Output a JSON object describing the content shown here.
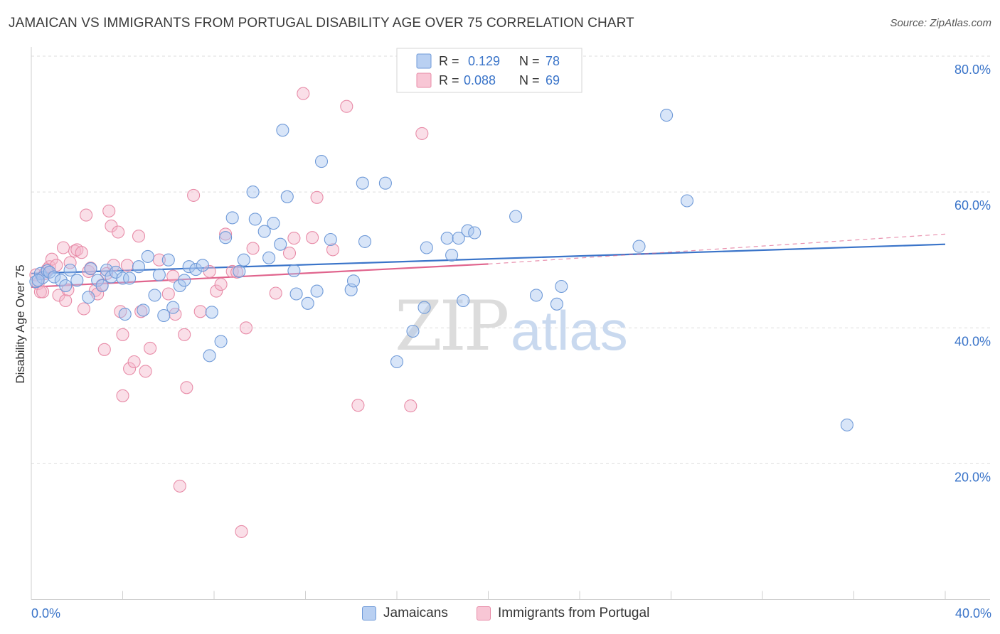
{
  "header": {
    "title": "JAMAICAN VS IMMIGRANTS FROM PORTUGAL DISABILITY AGE OVER 75 CORRELATION CHART",
    "source": "Source: ZipAtlas.com"
  },
  "watermark": {
    "zip": "ZIP",
    "atlas": "atlas"
  },
  "legend_top": [
    {
      "r_label": "R =",
      "r_value": "0.129",
      "n_label": "N =",
      "n_value": "78"
    },
    {
      "r_label": "R =",
      "r_value": "0.088",
      "n_label": "N =",
      "n_value": "69"
    }
  ],
  "chart_data": {
    "type": "scatter",
    "title": "JAMAICAN VS IMMIGRANTS FROM PORTUGAL DISABILITY AGE OVER 75 CORRELATION CHART",
    "xlabel": "",
    "ylabel": "Disability Age Over 75",
    "xlim": [
      0,
      40
    ],
    "ylim": [
      0,
      85
    ],
    "x_tick_labels": [
      "0.0%",
      "40.0%"
    ],
    "y_ticks": [
      20,
      40,
      60,
      80
    ],
    "y_tick_labels": [
      "20.0%",
      "40.0%",
      "60.0%",
      "80.0%"
    ],
    "grid": true,
    "legend_position": "top-center",
    "colors": {
      "jamaicans_fill": "#a9c6ef",
      "jamaicans_stroke": "#6f9ad8",
      "jamaicans_line": "#3a74c9",
      "portugal_fill": "#f5b8cb",
      "portugal_stroke": "#e88ca8",
      "portugal_line": "#e0648d",
      "value_text": "#3a74c9"
    },
    "series": [
      {
        "name": "Jamaicans",
        "points": [
          [
            0.2,
            46.8
          ],
          [
            0.4,
            48.0
          ],
          [
            0.5,
            47.4
          ],
          [
            0.7,
            48.4
          ],
          [
            0.8,
            48.2
          ],
          [
            1.0,
            47.5
          ],
          [
            1.3,
            47.0
          ],
          [
            1.5,
            46.2
          ],
          [
            1.7,
            48.5
          ],
          [
            2.0,
            47.0
          ],
          [
            2.5,
            44.5
          ],
          [
            2.6,
            48.7
          ],
          [
            2.9,
            47.0
          ],
          [
            3.1,
            46.2
          ],
          [
            3.3,
            48.5
          ],
          [
            3.5,
            47.5
          ],
          [
            3.7,
            48.2
          ],
          [
            4.0,
            47.3
          ],
          [
            4.1,
            42.0
          ],
          [
            4.3,
            47.3
          ],
          [
            4.7,
            49.0
          ],
          [
            4.9,
            42.6
          ],
          [
            5.1,
            50.5
          ],
          [
            5.4,
            44.8
          ],
          [
            5.6,
            47.8
          ],
          [
            5.8,
            41.8
          ],
          [
            6.0,
            50.0
          ],
          [
            6.2,
            43.0
          ],
          [
            6.5,
            46.2
          ],
          [
            6.7,
            47.0
          ],
          [
            6.9,
            49.0
          ],
          [
            7.2,
            48.6
          ],
          [
            7.5,
            49.2
          ],
          [
            7.8,
            35.9
          ],
          [
            7.9,
            42.3
          ],
          [
            8.3,
            38.0
          ],
          [
            8.5,
            53.3
          ],
          [
            8.8,
            56.2
          ],
          [
            9.1,
            48.3
          ],
          [
            9.3,
            50.0
          ],
          [
            9.7,
            60.0
          ],
          [
            9.8,
            56.0
          ],
          [
            10.2,
            54.2
          ],
          [
            10.4,
            50.3
          ],
          [
            10.6,
            55.4
          ],
          [
            10.9,
            52.3
          ],
          [
            11.0,
            69.1
          ],
          [
            11.2,
            59.3
          ],
          [
            11.5,
            48.4
          ],
          [
            11.6,
            45.0
          ],
          [
            12.1,
            43.6
          ],
          [
            12.5,
            45.4
          ],
          [
            12.7,
            64.5
          ],
          [
            13.1,
            53.0
          ],
          [
            14.0,
            45.6
          ],
          [
            14.1,
            46.9
          ],
          [
            14.5,
            61.3
          ],
          [
            14.6,
            52.7
          ],
          [
            15.5,
            61.3
          ],
          [
            16.0,
            35.0
          ],
          [
            16.7,
            39.5
          ],
          [
            17.2,
            43.0
          ],
          [
            17.3,
            51.8
          ],
          [
            18.2,
            53.2
          ],
          [
            18.4,
            50.7
          ],
          [
            18.7,
            53.2
          ],
          [
            18.9,
            44.0
          ],
          [
            19.1,
            54.3
          ],
          [
            19.4,
            54.0
          ],
          [
            21.2,
            56.4
          ],
          [
            22.1,
            44.8
          ],
          [
            23.0,
            43.5
          ],
          [
            23.2,
            46.1
          ],
          [
            26.6,
            52.0
          ],
          [
            27.8,
            71.3
          ],
          [
            28.7,
            58.7
          ],
          [
            35.7,
            25.7
          ],
          [
            0.3,
            47.0
          ]
        ],
        "trend_from": [
          0,
          48.0
        ],
        "trend_to": [
          40,
          52.3
        ]
      },
      {
        "name": "Immigrants from Portugal",
        "points": [
          [
            0.2,
            47.8
          ],
          [
            0.3,
            46.5
          ],
          [
            0.4,
            45.3
          ],
          [
            0.5,
            45.3
          ],
          [
            0.6,
            48.0
          ],
          [
            0.7,
            48.6
          ],
          [
            0.8,
            49.0
          ],
          [
            0.9,
            50.1
          ],
          [
            1.1,
            49.2
          ],
          [
            1.2,
            44.8
          ],
          [
            1.4,
            51.8
          ],
          [
            1.5,
            44.0
          ],
          [
            1.6,
            45.6
          ],
          [
            1.7,
            49.6
          ],
          [
            1.9,
            51.3
          ],
          [
            2.0,
            51.5
          ],
          [
            2.2,
            51.1
          ],
          [
            2.3,
            42.8
          ],
          [
            2.4,
            56.6
          ],
          [
            2.5,
            48.3
          ],
          [
            2.6,
            48.8
          ],
          [
            2.8,
            45.5
          ],
          [
            2.9,
            45.0
          ],
          [
            3.1,
            46.3
          ],
          [
            3.2,
            36.8
          ],
          [
            3.3,
            48.0
          ],
          [
            3.4,
            57.2
          ],
          [
            3.5,
            55.0
          ],
          [
            3.6,
            49.2
          ],
          [
            3.8,
            54.1
          ],
          [
            3.9,
            42.4
          ],
          [
            4.0,
            39.0
          ],
          [
            4.0,
            30.0
          ],
          [
            4.2,
            49.2
          ],
          [
            4.3,
            34.0
          ],
          [
            4.5,
            35.0
          ],
          [
            4.7,
            53.5
          ],
          [
            4.8,
            42.4
          ],
          [
            5.0,
            33.6
          ],
          [
            5.2,
            37.0
          ],
          [
            5.6,
            50.0
          ],
          [
            6.0,
            45.0
          ],
          [
            6.2,
            47.6
          ],
          [
            6.3,
            42.0
          ],
          [
            6.5,
            16.7
          ],
          [
            6.7,
            39.0
          ],
          [
            6.8,
            31.2
          ],
          [
            7.1,
            59.5
          ],
          [
            7.4,
            42.4
          ],
          [
            7.8,
            48.3
          ],
          [
            8.1,
            45.4
          ],
          [
            8.3,
            46.4
          ],
          [
            8.5,
            53.8
          ],
          [
            8.8,
            48.3
          ],
          [
            9.2,
            10.0
          ],
          [
            9.4,
            40.0
          ],
          [
            9.7,
            51.7
          ],
          [
            10.7,
            45.1
          ],
          [
            11.3,
            51.0
          ],
          [
            11.5,
            53.2
          ],
          [
            11.9,
            74.5
          ],
          [
            12.3,
            53.3
          ],
          [
            12.5,
            59.2
          ],
          [
            13.2,
            51.5
          ],
          [
            13.8,
            72.6
          ],
          [
            14.3,
            28.6
          ],
          [
            16.6,
            28.5
          ],
          [
            17.1,
            68.6
          ],
          [
            9.0,
            48.2
          ]
        ],
        "trend_from": [
          0,
          46.0
        ],
        "trend_to": [
          20,
          49.4
        ],
        "trend_dashed_to": [
          40,
          53.8
        ]
      }
    ]
  }
}
